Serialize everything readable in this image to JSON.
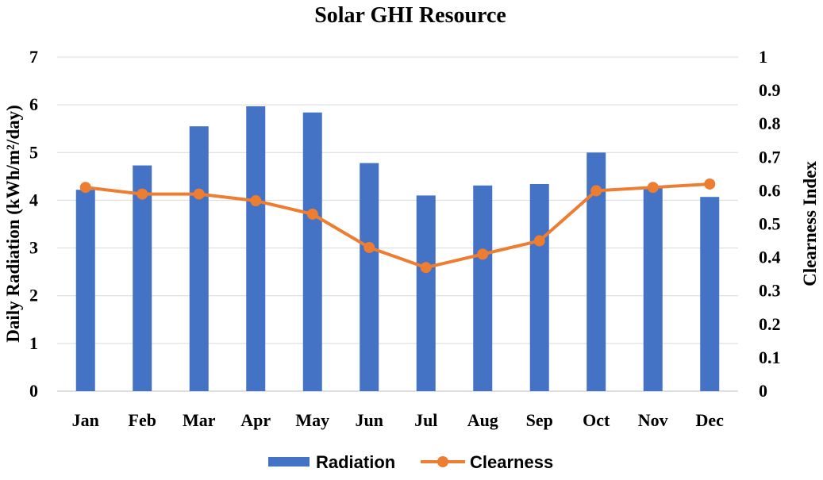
{
  "chart_data": {
    "type": "bar",
    "title": "Solar GHI Resource",
    "categories": [
      "Jan",
      "Feb",
      "Mar",
      "Apr",
      "May",
      "Jun",
      "Jul",
      "Aug",
      "Sep",
      "Oct",
      "Nov",
      "Dec"
    ],
    "series": [
      {
        "name": "Radiation",
        "kind": "bar",
        "axis": "left",
        "color": "#4472C4",
        "values": [
          4.22,
          4.73,
          5.55,
          5.97,
          5.84,
          4.78,
          4.1,
          4.31,
          4.34,
          5.0,
          4.26,
          4.07
        ]
      },
      {
        "name": "Clearness",
        "kind": "line",
        "axis": "right",
        "color": "#ED7D31",
        "values": [
          0.61,
          0.59,
          0.59,
          0.57,
          0.53,
          0.43,
          0.37,
          0.41,
          0.45,
          0.6,
          0.61,
          0.62
        ]
      }
    ],
    "ylabel": "Daily Radiation (kWh/m²/day)",
    "ylim": [
      0,
      7
    ],
    "yticks": [
      "0",
      "1",
      "2",
      "3",
      "4",
      "5",
      "6",
      "7"
    ],
    "y2label": "Clearness Index",
    "y2lim": [
      0,
      1
    ],
    "y2ticks": [
      "0",
      "0.1",
      "0.2",
      "0.3",
      "0.4",
      "0.5",
      "0.6",
      "0.7",
      "0.8",
      "0.9",
      "1"
    ],
    "grid": true,
    "legend_position": "bottom-center"
  }
}
